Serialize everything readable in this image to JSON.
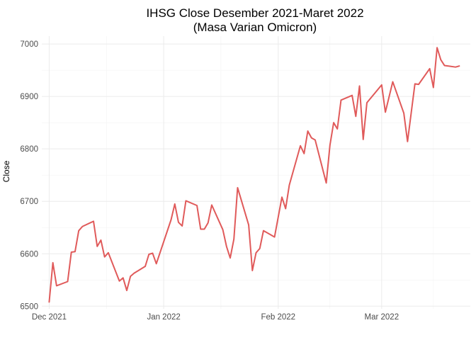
{
  "chart_data": {
    "type": "line",
    "title": "IHSG Close Desember 2021-Maret 2022",
    "subtitle": "(Masa Varian Omicron)",
    "xlabel": "",
    "ylabel": "Close",
    "xlim": [
      "2021-11-29",
      "2022-03-25"
    ],
    "ylim": [
      6495,
      7015
    ],
    "x_ticks": [
      {
        "date": "2021-12-01",
        "label": "Dec 2021"
      },
      {
        "date": "2022-01-01",
        "label": "Jan 2022"
      },
      {
        "date": "2022-02-01",
        "label": "Feb 2022"
      },
      {
        "date": "2022-03-01",
        "label": "Mar 2022"
      }
    ],
    "y_ticks": [
      6500,
      6600,
      6700,
      6800,
      6900,
      7000
    ],
    "grid": true,
    "legend": "none",
    "line_color": "#e05a5a",
    "series": [
      {
        "x": [
          "2021-12-01",
          "2021-12-02",
          "2021-12-03",
          "2021-12-06",
          "2021-12-07",
          "2021-12-08",
          "2021-12-09",
          "2021-12-10",
          "2021-12-13",
          "2021-12-14",
          "2021-12-15",
          "2021-12-16",
          "2021-12-17",
          "2021-12-20",
          "2021-12-21",
          "2021-12-22",
          "2021-12-23",
          "2021-12-24",
          "2021-12-27",
          "2021-12-28",
          "2021-12-29",
          "2021-12-30",
          "2022-01-03",
          "2022-01-04",
          "2022-01-05",
          "2022-01-06",
          "2022-01-07",
          "2022-01-10",
          "2022-01-11",
          "2022-01-12",
          "2022-01-13",
          "2022-01-14",
          "2022-01-17",
          "2022-01-18",
          "2022-01-19",
          "2022-01-20",
          "2022-01-21",
          "2022-01-24",
          "2022-01-25",
          "2022-01-26",
          "2022-01-27",
          "2022-01-28",
          "2022-01-31",
          "2022-02-02",
          "2022-02-03",
          "2022-02-04",
          "2022-02-07",
          "2022-02-08",
          "2022-02-09",
          "2022-02-10",
          "2022-02-11",
          "2022-02-14",
          "2022-02-15",
          "2022-02-16",
          "2022-02-17",
          "2022-02-18",
          "2022-02-21",
          "2022-02-22",
          "2022-02-23",
          "2022-02-24",
          "2022-02-25",
          "2022-03-01",
          "2022-03-02",
          "2022-03-04",
          "2022-03-07",
          "2022-03-08",
          "2022-03-09",
          "2022-03-10",
          "2022-03-11",
          "2022-03-14",
          "2022-03-15",
          "2022-03-16",
          "2022-03-17",
          "2022-03-18",
          "2022-03-21",
          "2022-03-22"
        ],
        "y": [
          6508,
          6583,
          6539,
          6547,
          6603,
          6604,
          6644,
          6652,
          6662,
          6614,
          6626,
          6594,
          6602,
          6548,
          6554,
          6530,
          6557,
          6563,
          6576,
          6599,
          6601,
          6581,
          6665,
          6695,
          6660,
          6653,
          6701,
          6692,
          6647,
          6647,
          6659,
          6693,
          6646,
          6614,
          6592,
          6628,
          6726,
          6655,
          6568,
          6602,
          6610,
          6644,
          6632,
          6708,
          6686,
          6731,
          6806,
          6791,
          6834,
          6821,
          6817,
          6735,
          6807,
          6850,
          6838,
          6893,
          6902,
          6862,
          6920,
          6818,
          6888,
          6922,
          6870,
          6928,
          6868,
          6814,
          6869,
          6924,
          6923,
          6953,
          6917,
          6993,
          6970,
          6959,
          6956,
          6958
        ]
      }
    ]
  }
}
